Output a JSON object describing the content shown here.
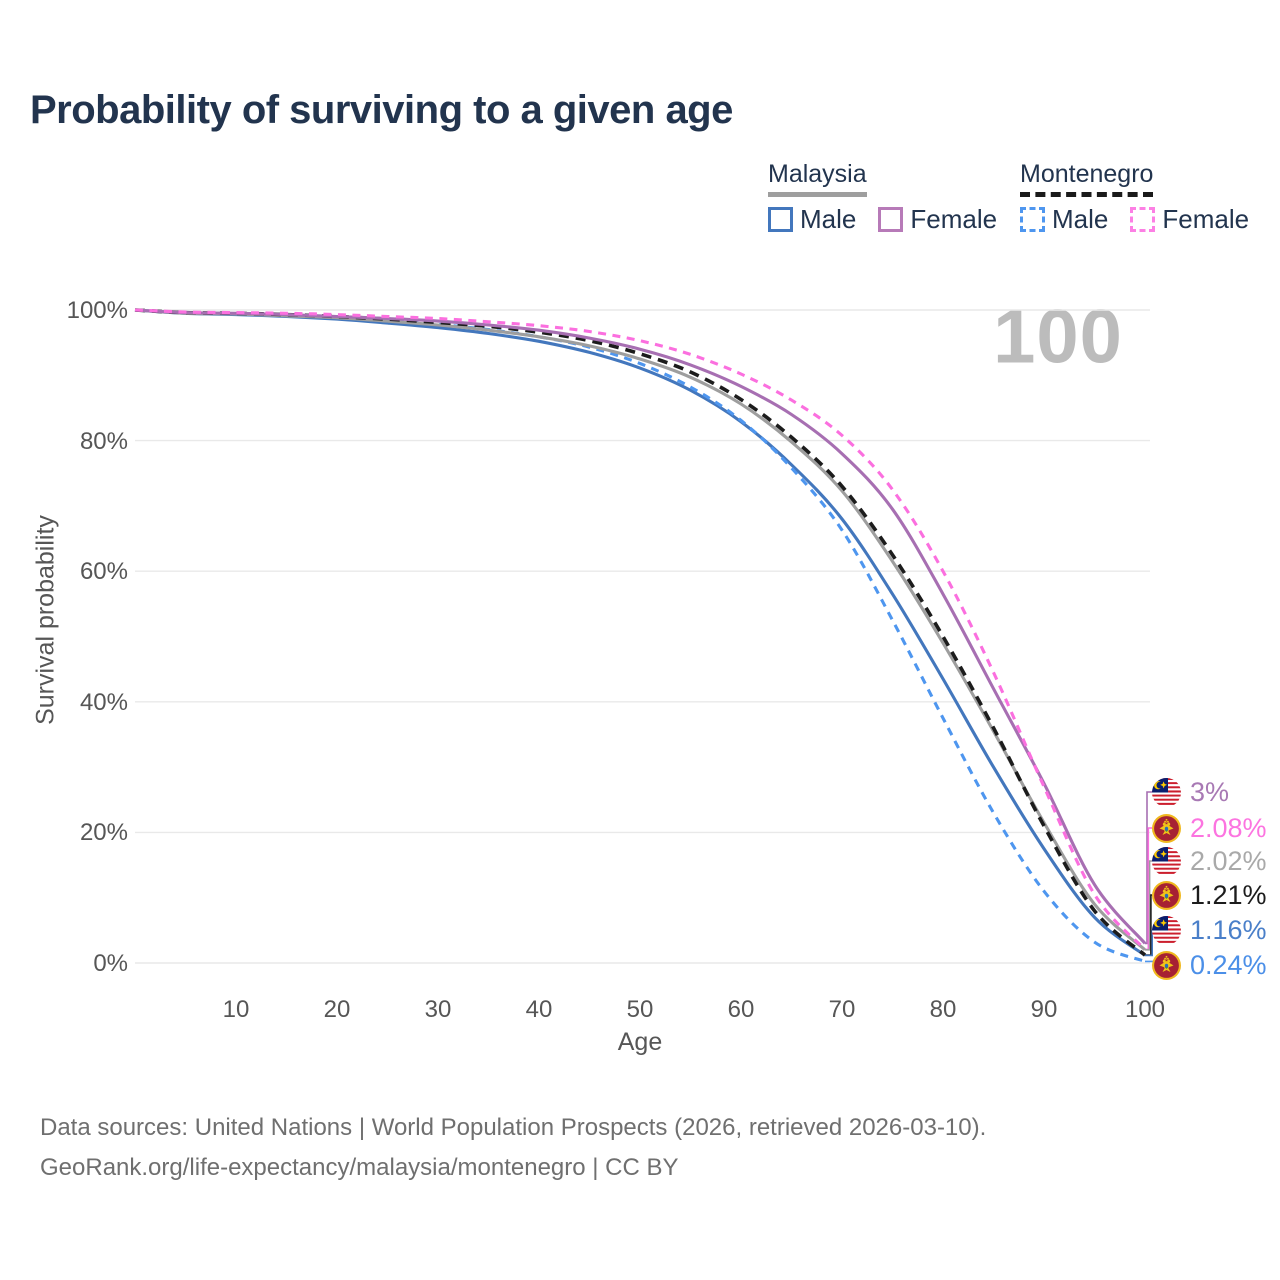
{
  "title": "Probability of surviving to a given age",
  "watermark": "100",
  "legend": {
    "groups": [
      {
        "title": "Malaysia",
        "style": "solid",
        "items": [
          {
            "label": "Male",
            "color": "#4377bd"
          },
          {
            "label": "Female",
            "color": "#b77ab8"
          }
        ]
      },
      {
        "title": "Montenegro",
        "style": "dashed",
        "items": [
          {
            "label": "Male",
            "color": "#4e96ef"
          },
          {
            "label": "Female",
            "color": "#fc80e4"
          }
        ]
      }
    ]
  },
  "chart_data": {
    "type": "line",
    "title": "Probability of surviving to a given age",
    "xlabel": "Age",
    "ylabel": "Survival probability",
    "xlim": [
      0,
      100
    ],
    "ylim": [
      0,
      100
    ],
    "grid": "horizontal",
    "x_ticks": [
      "10",
      "20",
      "30",
      "40",
      "50",
      "60",
      "70",
      "80",
      "90",
      "100"
    ],
    "x_tick_values": [
      10,
      20,
      30,
      40,
      50,
      60,
      70,
      80,
      90,
      100
    ],
    "y_ticks": [
      "0%",
      "20%",
      "40%",
      "60%",
      "80%",
      "100%"
    ],
    "y_tick_values": [
      0,
      20,
      40,
      60,
      80,
      100
    ],
    "x": [
      0,
      5,
      10,
      15,
      20,
      25,
      30,
      35,
      40,
      45,
      50,
      55,
      60,
      65,
      70,
      75,
      80,
      85,
      90,
      95,
      100
    ],
    "series": [
      {
        "id": "my-male",
        "name": "Malaysia Male",
        "color": "#4377bd",
        "style": "solid",
        "values": [
          100,
          99.5,
          99.3,
          99.0,
          98.6,
          98.0,
          97.3,
          96.4,
          95.2,
          93.5,
          91.1,
          87.7,
          82.9,
          76.3,
          68.0,
          56.5,
          43.5,
          30.0,
          17.5,
          7.0,
          1.16
        ]
      },
      {
        "id": "mne-male",
        "name": "Montenegro Male",
        "color": "#4e96ef",
        "style": "dashed",
        "values": [
          100,
          99.6,
          99.5,
          99.2,
          98.9,
          98.4,
          97.8,
          97.0,
          95.9,
          94.3,
          91.8,
          88.2,
          83.1,
          75.8,
          66.3,
          52.5,
          37.5,
          23.0,
          11.0,
          3.2,
          0.24
        ]
      },
      {
        "id": "my-all",
        "name": "Malaysia Both sexes",
        "color": "#9e9e9e",
        "style": "solid",
        "values": [
          100,
          99.5,
          99.4,
          99.1,
          98.8,
          98.3,
          97.7,
          96.9,
          95.9,
          94.5,
          92.5,
          89.7,
          85.6,
          79.8,
          72.3,
          61.5,
          49.0,
          35.5,
          21.5,
          9.0,
          2.02
        ]
      },
      {
        "id": "mne-all",
        "name": "Montenegro Both sexes",
        "color": "#1c1c1c",
        "style": "dashed",
        "values": [
          100,
          99.6,
          99.5,
          99.3,
          99.0,
          98.6,
          98.1,
          97.5,
          96.6,
          95.3,
          93.3,
          90.5,
          86.3,
          80.5,
          73.0,
          62.5,
          50.0,
          36.0,
          21.0,
          8.0,
          1.21
        ]
      },
      {
        "id": "my-female",
        "name": "Malaysia Female",
        "color": "#a76fb2",
        "style": "solid",
        "values": [
          100,
          99.6,
          99.5,
          99.3,
          99.0,
          98.7,
          98.3,
          97.7,
          96.9,
          95.7,
          94.0,
          91.6,
          88.3,
          84.0,
          78.0,
          69.5,
          56.5,
          42.0,
          27.5,
          12.0,
          3.0
        ]
      },
      {
        "id": "mne-female",
        "name": "Montenegro Female",
        "color": "#fb6fdf",
        "style": "dashed",
        "values": [
          100,
          99.7,
          99.6,
          99.5,
          99.3,
          99.0,
          98.7,
          98.2,
          97.6,
          96.7,
          95.3,
          93.2,
          90.2,
          86.2,
          80.8,
          72.5,
          60.0,
          44.5,
          27.0,
          10.5,
          2.08
        ]
      }
    ],
    "end_labels": [
      {
        "series": "my-female",
        "flag": "malaysia",
        "value": "3%",
        "color": "#a879b4"
      },
      {
        "series": "mne-female",
        "flag": "montenegro",
        "value": "2.08%",
        "color": "#fc74e0"
      },
      {
        "series": "my-all",
        "flag": "malaysia",
        "value": "2.02%",
        "color": "#a9a9a9"
      },
      {
        "series": "mne-all",
        "flag": "montenegro",
        "value": "1.21%",
        "color": "#1c1c1c"
      },
      {
        "series": "my-male",
        "flag": "malaysia",
        "value": "1.16%",
        "color": "#4a7fc9"
      },
      {
        "series": "mne-male",
        "flag": "montenegro",
        "value": "0.24%",
        "color": "#4b8fe8"
      }
    ]
  },
  "footer": {
    "line1": "Data sources: United Nations | World Population Prospects (2026, retrieved 2026-03-10).",
    "line2": "GeoRank.org/life-expectancy/malaysia/montenegro | CC BY"
  }
}
